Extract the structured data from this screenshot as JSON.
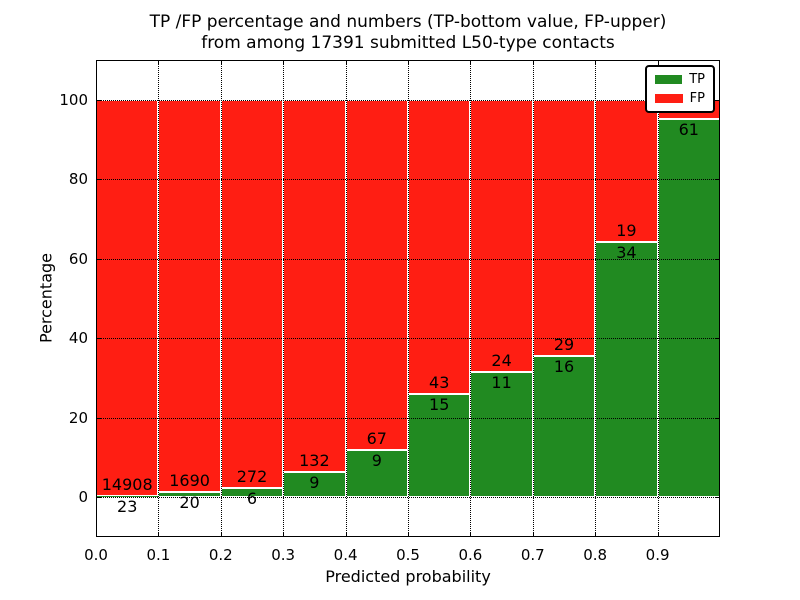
{
  "title": {
    "line1": "TP /FP percentage and numbers (TP-bottom value, FP-upper)",
    "line2": "from among 17391 submitted L50-type contacts"
  },
  "axes": {
    "x_label": "Predicted probability",
    "y_label": "Percentage",
    "x_tick_labels": [
      "0.0",
      "0.1",
      "0.2",
      "0.3",
      "0.4",
      "0.5",
      "0.6",
      "0.7",
      "0.8",
      "0.9"
    ],
    "y_tick_labels": [
      "0",
      "20",
      "40",
      "60",
      "80",
      "100"
    ],
    "y_tick_values": [
      0,
      20,
      40,
      60,
      80,
      100
    ]
  },
  "legend": {
    "items": [
      {
        "label": "TP",
        "color": "#218a21"
      },
      {
        "label": "FP",
        "color": "#ff1e13"
      }
    ],
    "position": "upper-right"
  },
  "colors": {
    "tp_green": "#218a21",
    "fp_red": "#ff1e13",
    "background": "#ffffff",
    "grid": "#000000"
  },
  "chart_data": {
    "type": "bar",
    "subtype": "stacked-100-percent",
    "title": "TP /FP percentage and numbers (TP-bottom value, FP-upper) from among 17391 submitted L50-type contacts",
    "xlabel": "Predicted probability",
    "ylabel": "Percentage",
    "xlim": [
      0.0,
      1.0
    ],
    "ylim_visible": [
      -10,
      110
    ],
    "grid": true,
    "legend_position": "upper-right",
    "bin_width": 0.1,
    "total_contacts": 17391,
    "series_note": "Each bar stacks TP% (green, bottom) and FP% (red, top) to 100%; labels are raw counts (TP below boundary, FP above boundary)",
    "bins": [
      {
        "x_start": 0.0,
        "x_end": 0.1,
        "tp": 23,
        "fp": 14908,
        "tp_pct": 0.15,
        "tp_label": "23",
        "fp_label": "14908"
      },
      {
        "x_start": 0.1,
        "x_end": 0.2,
        "tp": 20,
        "fp": 1690,
        "tp_pct": 1.17,
        "tp_label": "20",
        "fp_label": "1690"
      },
      {
        "x_start": 0.2,
        "x_end": 0.3,
        "tp": 6,
        "fp": 272,
        "tp_pct": 2.16,
        "tp_label": "6",
        "fp_label": "272"
      },
      {
        "x_start": 0.3,
        "x_end": 0.4,
        "tp": 9,
        "fp": 132,
        "tp_pct": 6.38,
        "tp_label": "9",
        "fp_label": "132"
      },
      {
        "x_start": 0.4,
        "x_end": 0.5,
        "tp": 9,
        "fp": 67,
        "tp_pct": 11.84,
        "tp_label": "9",
        "fp_label": "67"
      },
      {
        "x_start": 0.5,
        "x_end": 0.6,
        "tp": 15,
        "fp": 43,
        "tp_pct": 25.86,
        "tp_label": "15",
        "fp_label": "43"
      },
      {
        "x_start": 0.6,
        "x_end": 0.7,
        "tp": 11,
        "fp": 24,
        "tp_pct": 31.43,
        "tp_label": "11",
        "fp_label": "24"
      },
      {
        "x_start": 0.7,
        "x_end": 0.8,
        "tp": 16,
        "fp": 29,
        "tp_pct": 35.56,
        "tp_label": "16",
        "fp_label": "29"
      },
      {
        "x_start": 0.8,
        "x_end": 0.9,
        "tp": 34,
        "fp": 19,
        "tp_pct": 64.15,
        "tp_label": "34",
        "fp_label": "19"
      },
      {
        "x_start": 0.9,
        "x_end": 1.0,
        "tp": 61,
        "fp": null,
        "tp_pct": 95.3,
        "tp_label": "61",
        "fp_label": null
      }
    ],
    "notes": "FP count label of the last bin is hidden behind the legend box in the image"
  }
}
